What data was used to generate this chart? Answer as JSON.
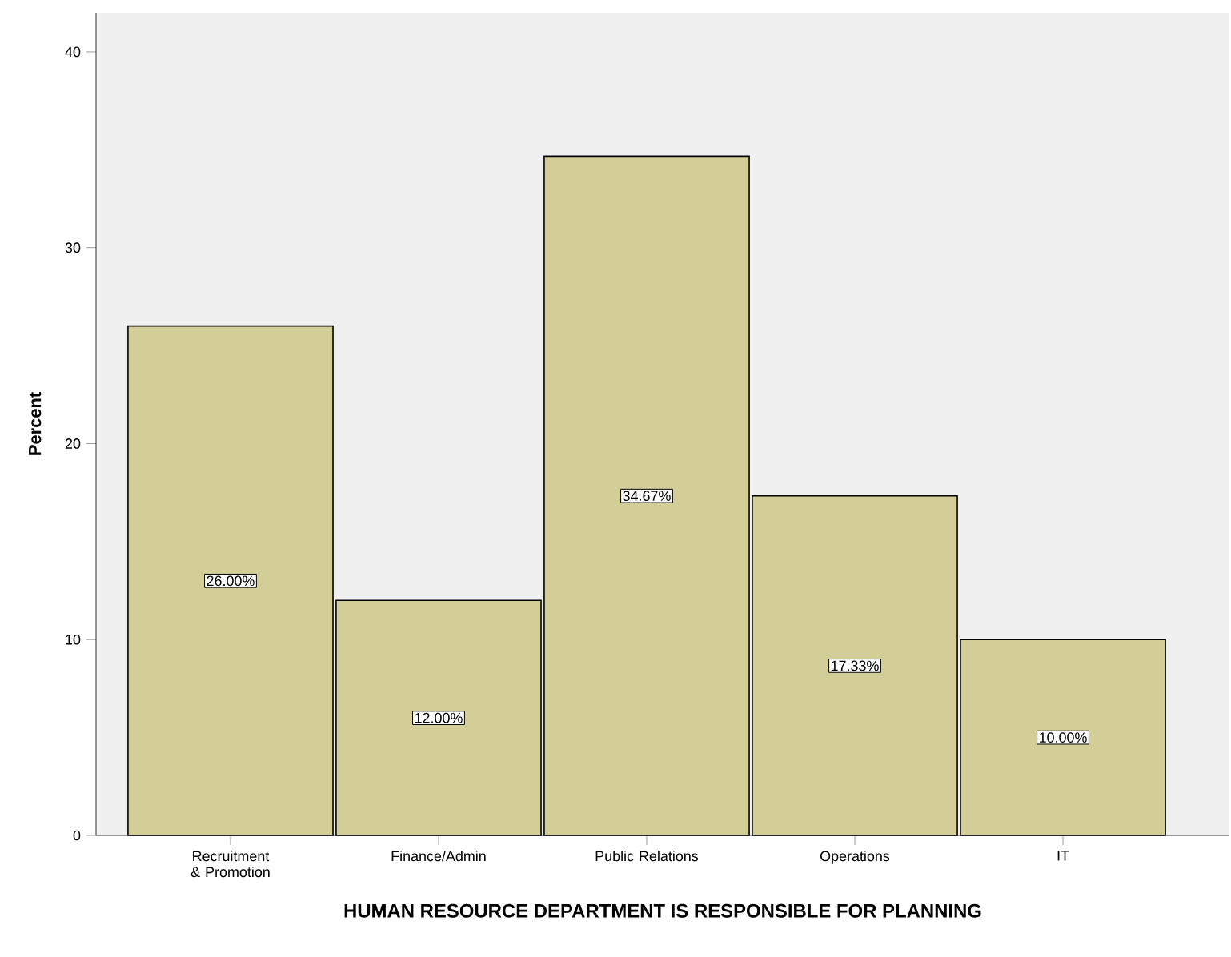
{
  "chart_data": {
    "type": "bar",
    "xlabel": "HUMAN RESOURCE DEPARTMENT IS RESPONSIBLE FOR PLANNING",
    "ylabel": "Percent",
    "categories": [
      "Recruitment & Promotion",
      "Finance/Admin",
      "Public Relations",
      "Operations",
      "IT"
    ],
    "values": [
      26.0,
      12.0,
      34.67,
      17.33,
      10.0
    ],
    "value_labels": [
      "26.00%",
      "12.00%",
      "34.67%",
      "17.33%",
      "10.00%"
    ],
    "color": "#d3ce98",
    "ylim": [
      0,
      42
    ],
    "yticks": [
      0,
      10,
      20,
      30,
      40
    ],
    "grid": false
  }
}
